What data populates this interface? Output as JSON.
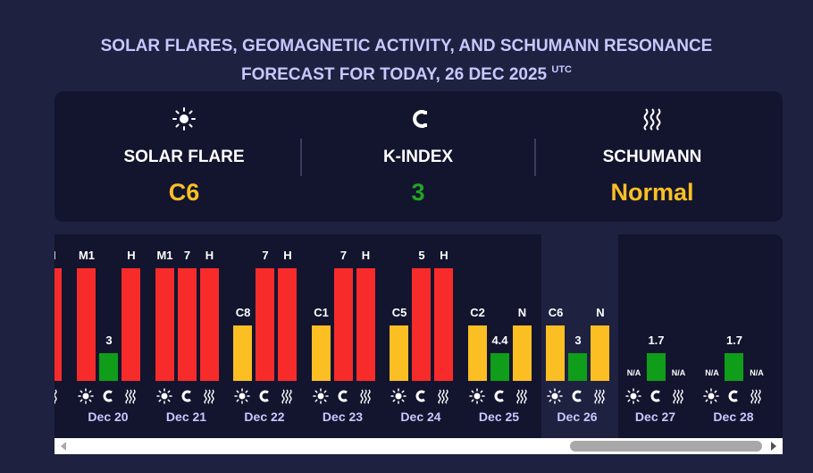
{
  "title": {
    "line1": "SOLAR FLARES, GEOMAGNETIC ACTIVITY, AND SCHUMANN RESONANCE",
    "line2": "FORECAST FOR TODAY, 26 DEC 2025",
    "sup": "UTC"
  },
  "summary": {
    "solar": {
      "label": "SOLAR FLARE",
      "value": "C6",
      "icon": "sun-icon",
      "color": "#fbbf24"
    },
    "kindex": {
      "label": "K-INDEX",
      "value": "3",
      "icon": "magnet-icon",
      "color": "#22a622"
    },
    "schumann": {
      "label": "SCHUMANN",
      "value": "Normal",
      "icon": "waves-icon",
      "color": "#fbbf24"
    }
  },
  "colors": {
    "red": "#f82b2b",
    "yellow": "#fbbf24",
    "green": "#0f9d1a",
    "today_bg": "#1e2140"
  },
  "chart_data": {
    "type": "bar",
    "title": "",
    "today": "Dec 26",
    "series_order": [
      "solar",
      "kindex",
      "schumann"
    ],
    "partial_left": {
      "schumann_label": "H"
    },
    "days": [
      {
        "date": "Dec 20",
        "solar": "M1",
        "kindex": "3",
        "schumann": "H"
      },
      {
        "date": "Dec 21",
        "solar": "M1",
        "kindex": "7",
        "schumann": "H"
      },
      {
        "date": "Dec 22",
        "solar": "C8",
        "kindex": "7",
        "schumann": "H"
      },
      {
        "date": "Dec 23",
        "solar": "C1",
        "kindex": "7",
        "schumann": "H"
      },
      {
        "date": "Dec 24",
        "solar": "C5",
        "kindex": "5",
        "schumann": "H"
      },
      {
        "date": "Dec 25",
        "solar": "C2",
        "kindex": "4.4",
        "schumann": "N"
      },
      {
        "date": "Dec 26",
        "solar": "C6",
        "kindex": "3",
        "schumann": "N"
      },
      {
        "date": "Dec 27",
        "solar": "",
        "kindex": "1.7",
        "schumann": "N/A",
        "solar_label": "N/A"
      },
      {
        "date": "Dec 28",
        "solar": "",
        "kindex": "1.7",
        "schumann": "N/A",
        "solar_label": "N/A"
      }
    ]
  },
  "scrollbar": {
    "left_icon": "triangle-left-icon",
    "right_icon": "triangle-right-icon"
  }
}
